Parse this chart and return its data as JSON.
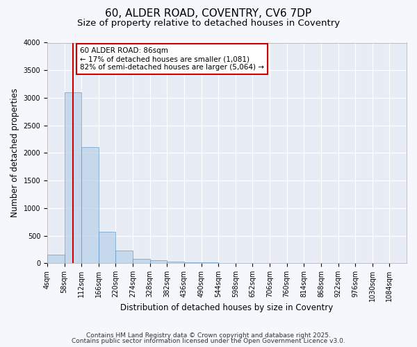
{
  "title1": "60, ALDER ROAD, COVENTRY, CV6 7DP",
  "title2": "Size of property relative to detached houses in Coventry",
  "xlabel": "Distribution of detached houses by size in Coventry",
  "ylabel": "Number of detached properties",
  "bin_edges": [
    4,
    58,
    112,
    166,
    220,
    274,
    328,
    382,
    436,
    490,
    544,
    598,
    652,
    706,
    760,
    814,
    868,
    922,
    976,
    1030,
    1084
  ],
  "bar_heights": [
    150,
    3100,
    2100,
    575,
    225,
    75,
    50,
    25,
    10,
    10,
    5,
    5,
    5,
    5,
    5,
    3,
    3,
    3,
    3,
    3
  ],
  "bar_color": "#b8d0e8",
  "bar_edge_color": "#5a8fc0",
  "bar_alpha": 0.7,
  "red_line_x": 86,
  "red_line_color": "#cc0000",
  "annotation_text": "60 ALDER ROAD: 86sqm\n← 17% of detached houses are smaller (1,081)\n82% of semi-detached houses are larger (5,064) →",
  "annotation_box_edge": "#cc0000",
  "annotation_box_face": "#ffffff",
  "ylim": [
    0,
    4000
  ],
  "yticks": [
    0,
    500,
    1000,
    1500,
    2000,
    2500,
    3000,
    3500,
    4000
  ],
  "plot_bg": "#e8edf5",
  "fig_bg": "#f5f7fc",
  "grid_color": "#ffffff",
  "footer1": "Contains HM Land Registry data © Crown copyright and database right 2025.",
  "footer2": "Contains public sector information licensed under the Open Government Licence v3.0.",
  "title_fontsize": 11,
  "subtitle_fontsize": 9.5,
  "tick_fontsize": 7,
  "label_fontsize": 8.5,
  "footer_fontsize": 6.5
}
